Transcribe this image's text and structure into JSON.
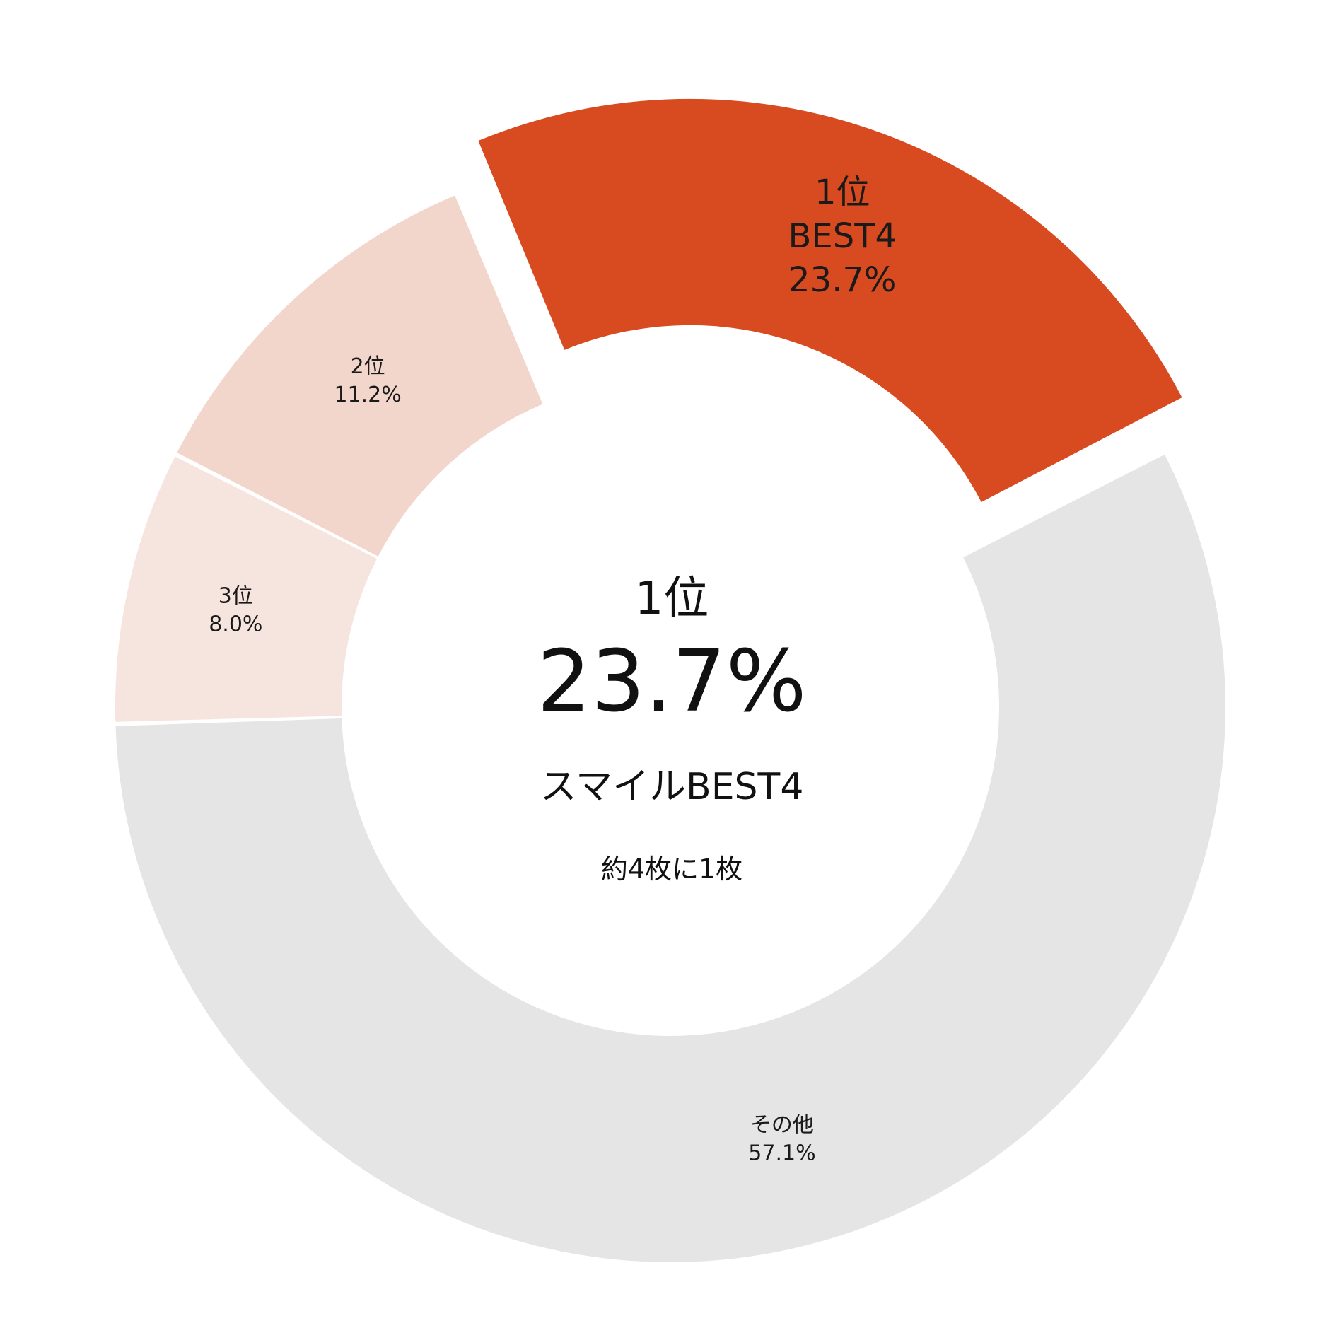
{
  "chart_data": {
    "type": "pie",
    "donut": true,
    "slices": [
      {
        "rank_label": "1位",
        "name": "BEST4",
        "value": 23.7,
        "value_label": "23.7%",
        "color": "#d84a1f",
        "exploded": true
      },
      {
        "rank_label": "2位",
        "name": "",
        "value": 11.2,
        "value_label": "11.2%",
        "color": "#f2d5cb",
        "exploded": false
      },
      {
        "rank_label": "3位",
        "name": "",
        "value": 8.0,
        "value_label": "8.0%",
        "color": "#f6e4de",
        "exploded": false
      },
      {
        "rank_label": "その他",
        "name": "",
        "value": 57.1,
        "value_label": "57.1%",
        "color": "#e5e5e5",
        "exploded": false
      }
    ],
    "center": {
      "rank": "1位",
      "value": "23.7%",
      "name": "スマイルBEST4",
      "note": "約4枚に1枚"
    }
  }
}
